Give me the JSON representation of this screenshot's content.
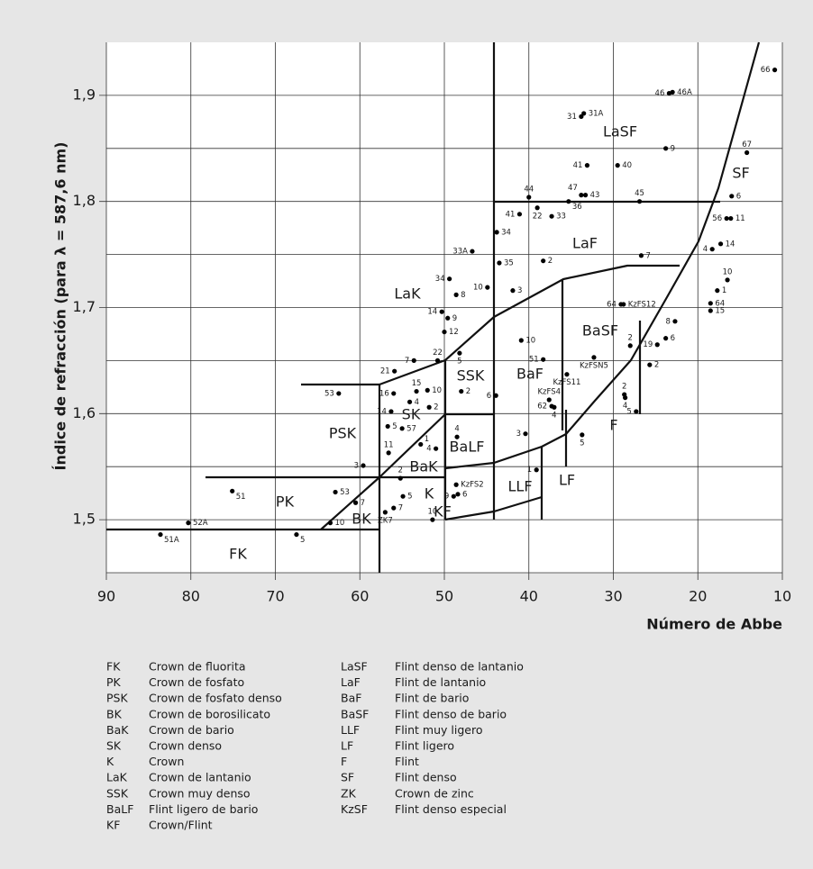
{
  "chart_data": {
    "type": "scatter",
    "xlabel": "Número de Abbe",
    "ylabel": "Índice de refracción (para λ = 587,6 nm)",
    "xlim": [
      90,
      10
    ],
    "ylim": [
      1.45,
      1.95
    ],
    "xticks": [
      90,
      80,
      70,
      60,
      50,
      40,
      30,
      20,
      10
    ],
    "yticks": [
      {
        "value": 1.5,
        "label": "1,5"
      },
      {
        "value": 1.6,
        "label": "1,6"
      },
      {
        "value": 1.7,
        "label": "1,7"
      },
      {
        "value": 1.8,
        "label": "1,8"
      },
      {
        "value": 1.9,
        "label": "1,9"
      }
    ],
    "yminor": [
      1.55,
      1.65,
      1.75,
      1.85
    ],
    "grid": true,
    "color": "#000000",
    "x": [
      83.6,
      80.3,
      75.1,
      67.5,
      63.5,
      62.9,
      60.5,
      57.0,
      56.0,
      54.9,
      55.2,
      51.4,
      48.9,
      59.6,
      56.6,
      52.8,
      51.0,
      48.4,
      48.6,
      48.5,
      56.7,
      55.0,
      56.3,
      54.1,
      53.3,
      56.0,
      62.5,
      52.0,
      51.8,
      55.9,
      53.6,
      50.8,
      48.2,
      48.0,
      43.9,
      50.0,
      49.6,
      50.3,
      48.6,
      49.4,
      44.9,
      46.7,
      43.8,
      43.5,
      41.9,
      38.3,
      40.9,
      38.3,
      37.6,
      37.3,
      37.0,
      40.4,
      39.1,
      35.5,
      32.3,
      29.1,
      28.8,
      28.0,
      24.8,
      23.8,
      25.7,
      22.7,
      28.7,
      28.6,
      27.3,
      33.7,
      26.9,
      26.7,
      33.8,
      33.3,
      35.3,
      40.0,
      39.0,
      37.3,
      33.1,
      41.1,
      29.5,
      33.8,
      33.5,
      23.4,
      23.0,
      23.8,
      10.9,
      14.2,
      16.0,
      16.6,
      16.1,
      18.3,
      17.3,
      16.5,
      17.7,
      18.5,
      18.5
    ],
    "values": [
      1.486,
      1.497,
      1.527,
      1.486,
      1.497,
      1.526,
      1.516,
      1.507,
      1.511,
      1.522,
      1.539,
      1.5,
      1.522,
      1.551,
      1.563,
      1.571,
      1.567,
      1.524,
      1.533,
      1.578,
      1.588,
      1.586,
      1.602,
      1.611,
      1.621,
      1.619,
      1.619,
      1.622,
      1.606,
      1.64,
      1.65,
      1.65,
      1.657,
      1.621,
      1.617,
      1.677,
      1.69,
      1.696,
      1.712,
      1.727,
      1.719,
      1.753,
      1.771,
      1.742,
      1.716,
      1.744,
      1.669,
      1.651,
      1.613,
      1.607,
      1.606,
      1.581,
      1.547,
      1.637,
      1.653,
      1.703,
      1.703,
      1.664,
      1.665,
      1.671,
      1.646,
      1.687,
      1.618,
      1.615,
      1.602,
      1.58,
      1.8,
      1.749,
      1.806,
      1.806,
      1.8,
      1.804,
      1.794,
      1.786,
      1.834,
      1.788,
      1.834,
      1.88,
      1.883,
      1.902,
      1.903,
      1.85,
      1.924,
      1.846,
      1.805,
      1.784,
      1.784,
      1.755,
      1.76,
      1.726,
      1.716,
      1.704,
      1.697
    ],
    "point_labels": [
      "51A",
      "52A",
      "51",
      "5",
      "10",
      "53",
      "7",
      "ZK7",
      "7",
      "5",
      "2",
      "10",
      "9",
      "3",
      "11",
      "1",
      "4",
      "6",
      "KzFS2",
      "4",
      "5",
      "57",
      "14",
      "4",
      "15",
      "16",
      "53",
      "10",
      "2",
      "21",
      "7",
      "22",
      "5",
      "2",
      "6",
      "12",
      "9",
      "14",
      "8",
      "34",
      "10",
      "33A",
      "34",
      "35",
      "3",
      "2",
      "10",
      "51",
      "KzFS4",
      "62",
      "4",
      "3",
      "1",
      "KzFS11",
      "KzFSN5",
      "64",
      "KzFS12",
      "2",
      "19",
      "6",
      "2",
      "8",
      "2",
      "4",
      "5",
      "5",
      "45",
      "7",
      "47",
      "43",
      "36",
      "44",
      "22",
      "33",
      "41",
      "41",
      "40",
      "31",
      "31A",
      "46",
      "46A",
      "9",
      "66",
      "67",
      "6",
      "56",
      "11",
      "4",
      "14",
      "10",
      "1",
      "64",
      "15"
    ],
    "regions": [
      "FK",
      "PK",
      "PSK",
      "BK",
      "SK",
      "BaK",
      "K",
      "KF",
      "BaLF",
      "SSK",
      "BaF",
      "LLF",
      "LF",
      "F",
      "BaSF",
      "LaK",
      "LaF",
      "LaSF",
      "SF"
    ],
    "key": [
      [
        {
          "code": "FK",
          "name": "Crown de fluorita"
        },
        {
          "code": "PK",
          "name": "Crown de fosfato"
        },
        {
          "code": "PSK",
          "name": "Crown de fosfato denso"
        },
        {
          "code": "BK",
          "name": "Crown de borosilicato"
        },
        {
          "code": "BaK",
          "name": "Crown de bario"
        },
        {
          "code": "SK",
          "name": "Crown denso"
        },
        {
          "code": "K",
          "name": "Crown"
        },
        {
          "code": "LaK",
          "name": "Crown de lantanio"
        },
        {
          "code": "SSK",
          "name": "Crown muy denso"
        },
        {
          "code": "BaLF",
          "name": "Flint ligero de bario"
        },
        {
          "code": "KF",
          "name": "Crown/Flint"
        }
      ],
      [
        {
          "code": "LaSF",
          "name": "Flint denso de lantanio"
        },
        {
          "code": "LaF",
          "name": "Flint de lantanio"
        },
        {
          "code": "BaF",
          "name": "Flint de bario"
        },
        {
          "code": "BaSF",
          "name": "Flint denso de bario"
        },
        {
          "code": "LLF",
          "name": "Flint muy ligero"
        },
        {
          "code": "LF",
          "name": "Flint ligero"
        },
        {
          "code": "F",
          "name": "Flint"
        },
        {
          "code": "SF",
          "name": "Flint denso"
        },
        {
          "code": "ZK",
          "name": "Crown de zinc"
        },
        {
          "code": "KzSF",
          "name": "Flint denso especial"
        }
      ]
    ]
  }
}
